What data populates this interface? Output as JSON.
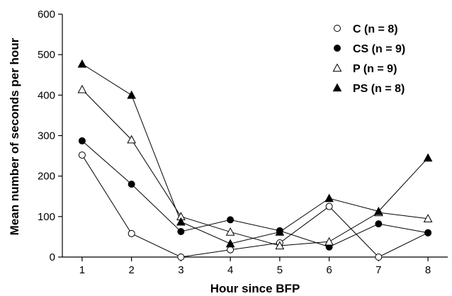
{
  "chart_data": {
    "type": "line",
    "title": "",
    "xlabel": "Hour since BFP",
    "ylabel": "Mean number of seconds per hour",
    "x": [
      1,
      2,
      3,
      4,
      5,
      6,
      7,
      8
    ],
    "xlim": [
      0.6,
      8.4
    ],
    "ylim": [
      0,
      600
    ],
    "yticks": [
      0,
      100,
      200,
      300,
      400,
      500,
      600
    ],
    "xticks": [
      1,
      2,
      3,
      4,
      5,
      6,
      7,
      8
    ],
    "grid": false,
    "legend_position": "top-right",
    "series": [
      {
        "name": "C (n = 8)",
        "marker": "circle-open",
        "color": "#000000",
        "values": [
          252,
          58,
          0,
          18,
          35,
          125,
          0,
          60
        ]
      },
      {
        "name": "CS (n = 9)",
        "marker": "circle-filled",
        "color": "#000000",
        "values": [
          287,
          180,
          63,
          92,
          65,
          25,
          82,
          60
        ]
      },
      {
        "name": "P (n = 9)",
        "marker": "triangle-open",
        "color": "#000000",
        "values": [
          414,
          290,
          100,
          62,
          28,
          38,
          110,
          95
        ]
      },
      {
        "name": "PS (n = 8)",
        "marker": "triangle-filled",
        "color": "#000000",
        "values": [
          477,
          400,
          87,
          33,
          62,
          145,
          113,
          245
        ]
      }
    ]
  }
}
